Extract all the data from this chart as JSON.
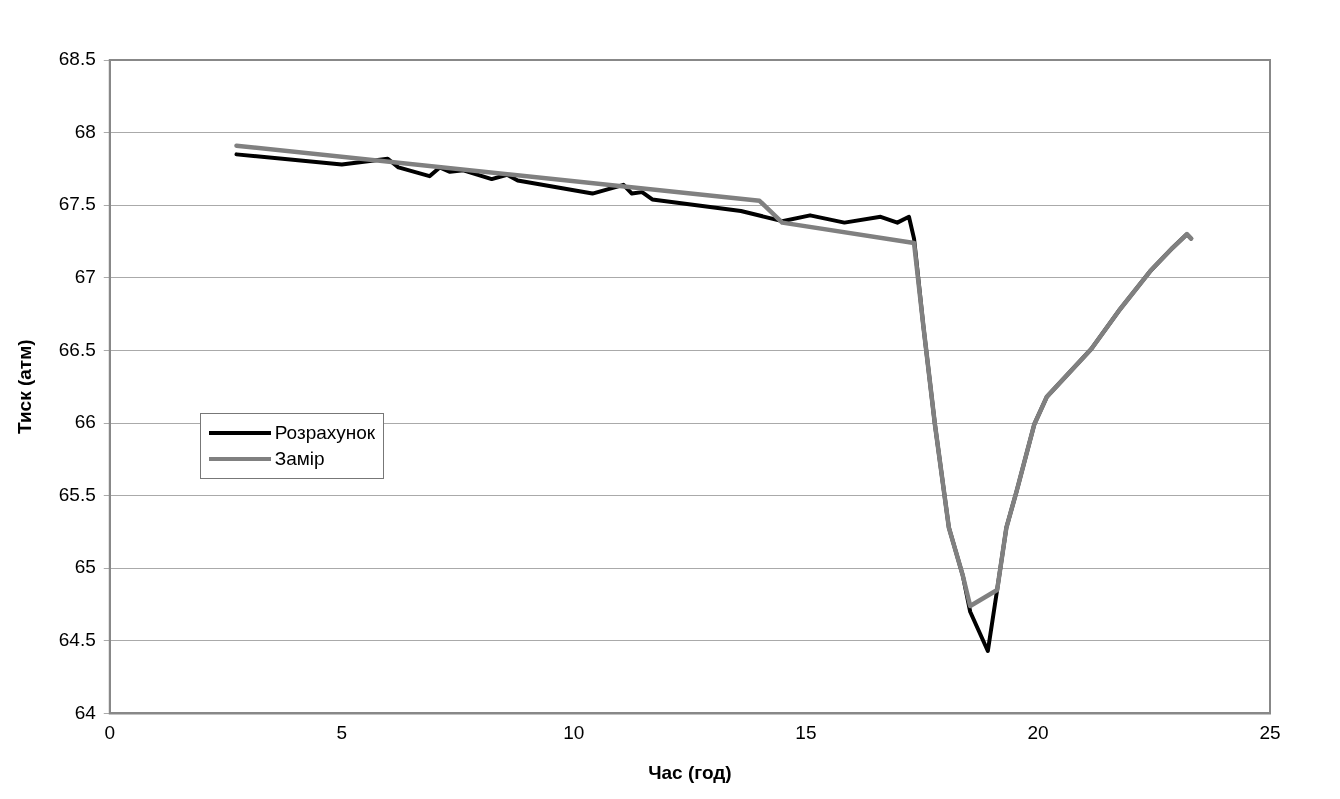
{
  "chart_data": {
    "type": "line",
    "xlabel": "Час (год)",
    "ylabel": "Тиск (атм)",
    "xlim": [
      0,
      25
    ],
    "xticks": [
      0,
      5,
      10,
      15,
      20,
      25
    ],
    "ylim": [
      64,
      68.5
    ],
    "yticks": [
      64,
      64.5,
      65,
      65.5,
      66,
      66.5,
      67,
      67.5,
      68,
      68.5
    ],
    "grid": "y",
    "legend": "left",
    "marker": "none",
    "line_style": "solid",
    "series": [
      {
        "name": "Розрахунок",
        "color": "#000000",
        "x": [
          2.73,
          5.0,
          5.99,
          6.22,
          6.89,
          7.11,
          7.33,
          7.62,
          8.23,
          8.56,
          8.79,
          10.4,
          11.07,
          11.25,
          11.47,
          11.69,
          13.6,
          14.49,
          15.09,
          15.83,
          16.61,
          16.97,
          17.22,
          17.33,
          17.53,
          17.78,
          18.08,
          18.38,
          18.54,
          18.92,
          19.12,
          19.32,
          19.54,
          19.92,
          20.19,
          21.15,
          21.76,
          22.43,
          22.88,
          23.21,
          23.3
        ],
        "values": [
          67.85,
          67.78,
          67.82,
          67.76,
          67.7,
          67.76,
          67.73,
          67.74,
          67.68,
          67.71,
          67.67,
          67.58,
          67.64,
          67.58,
          67.59,
          67.54,
          67.46,
          67.39,
          67.43,
          67.38,
          67.42,
          67.38,
          67.42,
          67.27,
          66.67,
          65.99,
          65.28,
          64.95,
          64.7,
          64.43,
          64.85,
          65.28,
          65.53,
          65.99,
          66.18,
          66.51,
          66.78,
          67.05,
          67.2,
          67.3,
          67.27
        ]
      },
      {
        "name": "Замір",
        "color": "#808080",
        "x": [
          2.73,
          14.0,
          14.49,
          17.33,
          17.53,
          17.78,
          18.08,
          18.38,
          18.54,
          19.12,
          19.32,
          19.54,
          19.92,
          20.19,
          21.15,
          21.76,
          22.43,
          22.88,
          23.21,
          23.3
        ],
        "values": [
          67.91,
          67.53,
          67.38,
          67.24,
          66.67,
          65.99,
          65.28,
          64.95,
          64.74,
          64.85,
          65.28,
          65.53,
          65.99,
          66.18,
          66.51,
          66.78,
          67.05,
          67.2,
          67.3,
          67.27
        ]
      }
    ]
  }
}
